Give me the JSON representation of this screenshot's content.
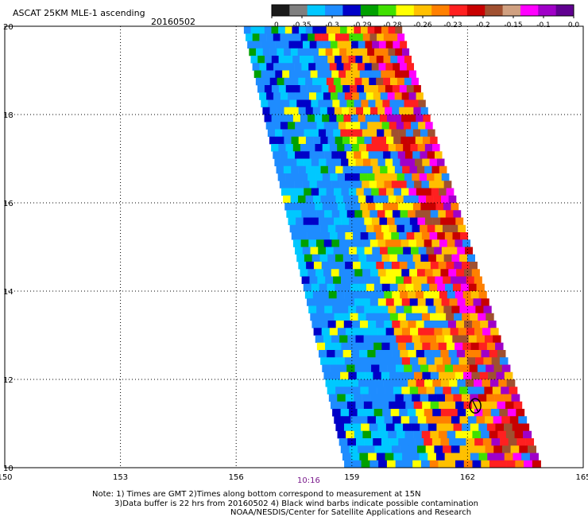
{
  "title": "ASCAT 25KM MLE-1 ascending",
  "date": "20160502",
  "time_label": "10:16",
  "notes": [
    "Note: 1) Times are GMT 2)Times along bottom correspond to measurement at 15N",
    "3)Data buffer is 22 hrs from 20160502 4) Black wind barbs indicate possible contamination",
    "NOAA/NESDIS/Center for Satellite Applications and Research"
  ],
  "colorbar": {
    "labels": [
      "-1.0",
      "-0.35",
      "-0.3",
      "-0.29",
      "-0.28",
      "-0.26",
      "-0.23",
      "-0.2",
      "-0.15",
      "-0.1",
      "0.0"
    ],
    "colors": [
      "#1a1a1a",
      "#7f7f7f",
      "#00c8ff",
      "#1e8cff",
      "#0000c8",
      "#00a000",
      "#40e000",
      "#ffff00",
      "#ffc000",
      "#ff8000",
      "#ff2020",
      "#c80000",
      "#a05030",
      "#d0a080",
      "#ff00ff",
      "#a000c8",
      "#600090"
    ]
  },
  "chart_data": {
    "type": "heatmap",
    "title": "ASCAT 25KM MLE-1 ascending",
    "subtitle": "20160502",
    "x_ticks": [
      150,
      153,
      156,
      159,
      162,
      165
    ],
    "y_ticks": [
      10,
      12,
      14,
      16,
      18,
      20
    ],
    "xlim": [
      150,
      165
    ],
    "ylim": [
      10,
      20
    ],
    "grid": true,
    "swath": {
      "top_left_lon": 156.2,
      "top_right_lon": 160.3,
      "bottom_left_lon": 158.8,
      "bottom_right_lon": 163.9,
      "lat_top": 20,
      "lat_bottom": 10
    },
    "time_marker": {
      "label": "10:16",
      "lon": 159
    },
    "wind_barb": {
      "lon": 162.2,
      "lat": 11.4
    }
  }
}
